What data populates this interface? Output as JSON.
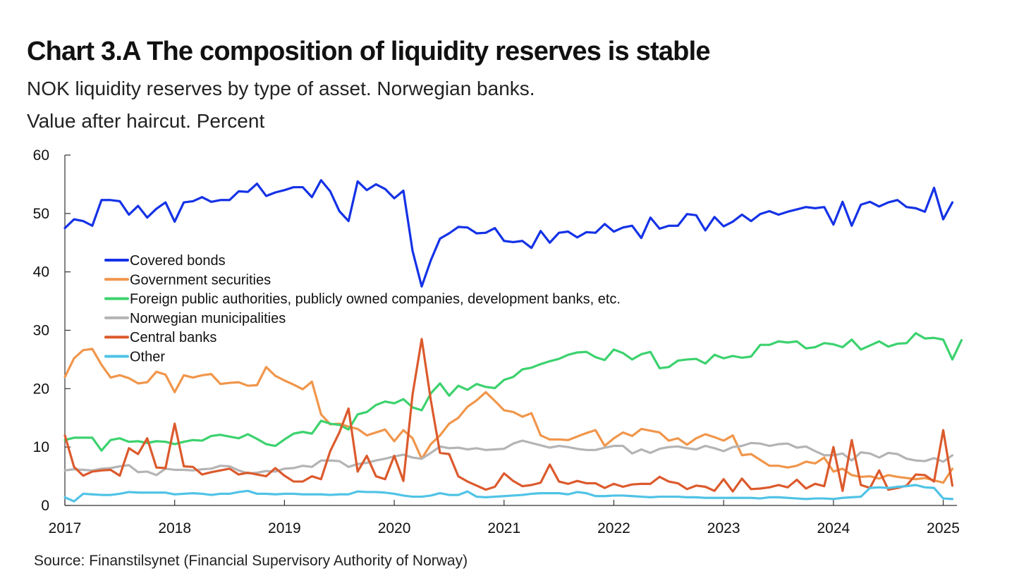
{
  "title": "Chart 3.A The composition of liquidity reserves is stable",
  "subtitle_line1": "NOK liquidity reserves by type of asset. Norwegian banks.",
  "subtitle_line2": "Value after haircut. Percent",
  "source": "Source: Finanstilsynet (Financial Supervisory Authority of Norway)",
  "chart_data": {
    "type": "line",
    "title": "Chart 3.A The composition of liquidity reserves is stable",
    "xlabel": "",
    "ylabel": "",
    "ylim": [
      0,
      60
    ],
    "xlim": [
      2017.0,
      2025.125
    ],
    "yticks": [
      0,
      10,
      20,
      30,
      40,
      50,
      60
    ],
    "xticks": [
      2017,
      2018,
      2019,
      2020,
      2021,
      2022,
      2023,
      2024,
      2025
    ],
    "frequency": "monthly",
    "x_start": "2017-01",
    "grid": false,
    "legend_position": "left, inside plot",
    "series": [
      {
        "name": "Covered bonds",
        "color": "#1432e6",
        "values": [
          47.5,
          49.0,
          48.7,
          47.9,
          52.3,
          52.3,
          52.1,
          49.8,
          51.3,
          49.3,
          50.8,
          51.9,
          48.6,
          51.9,
          52.1,
          52.8,
          52.0,
          52.3,
          52.3,
          53.8,
          53.7,
          55.1,
          53.0,
          53.6,
          54.0,
          54.5,
          54.5,
          52.8,
          55.7,
          53.8,
          50.4,
          48.7,
          55.5,
          54.0,
          55.0,
          54.2,
          52.6,
          53.9,
          43.6,
          37.5,
          42.0,
          45.7,
          46.6,
          47.7,
          47.6,
          46.6,
          46.7,
          47.5,
          45.3,
          45.1,
          45.3,
          44.1,
          47.0,
          45.0,
          46.7,
          46.9,
          45.9,
          46.8,
          46.7,
          48.2,
          46.9,
          47.6,
          47.9,
          45.8,
          49.3,
          47.4,
          47.9,
          47.9,
          49.9,
          49.7,
          47.1,
          49.4,
          47.8,
          48.6,
          49.8,
          48.7,
          49.9,
          50.4,
          49.8,
          50.3,
          50.7,
          51.1,
          50.9,
          51.1,
          48.1,
          52.0,
          47.9,
          51.5,
          52.0,
          51.2,
          51.9,
          52.3,
          51.1,
          50.9,
          50.3,
          54.4,
          49.0,
          51.9
        ]
      },
      {
        "name": "Government securities",
        "color": "#f0964b",
        "values": [
          22.0,
          25.2,
          26.6,
          26.8,
          24.1,
          21.9,
          22.3,
          21.8,
          20.9,
          21.1,
          22.9,
          22.4,
          19.4,
          22.3,
          21.9,
          22.3,
          22.5,
          20.8,
          21.0,
          21.1,
          20.5,
          20.6,
          23.7,
          22.2,
          21.4,
          20.7,
          19.9,
          21.2,
          15.6,
          13.9,
          14.0,
          13.5,
          13.1,
          12.0,
          12.5,
          13.0,
          11.0,
          12.9,
          11.5,
          8.0,
          10.5,
          12.0,
          14.0,
          15.0,
          16.9,
          18.0,
          19.4,
          17.9,
          16.3,
          16.0,
          15.2,
          15.8,
          12.0,
          11.3,
          11.3,
          11.2,
          11.8,
          12.4,
          12.9,
          10.2,
          11.5,
          12.5,
          11.9,
          13.1,
          12.8,
          12.5,
          11.1,
          11.5,
          10.4,
          11.5,
          12.2,
          11.7,
          11.1,
          12.0,
          8.6,
          8.8,
          7.8,
          6.8,
          6.8,
          6.5,
          6.8,
          7.5,
          7.2,
          8.2,
          5.8,
          6.3,
          5.2,
          4.9,
          5.0,
          4.6,
          5.2,
          4.9,
          4.7,
          4.5,
          4.7,
          4.3,
          3.9,
          6.3
        ]
      },
      {
        "name": "Foreign public authorities, publicly owned companies, development banks, etc.",
        "color": "#3cd26e",
        "values": [
          11.2,
          11.6,
          11.6,
          11.6,
          9.4,
          11.2,
          11.5,
          10.9,
          11.0,
          10.7,
          11.0,
          10.9,
          10.5,
          10.9,
          11.2,
          11.1,
          11.9,
          12.1,
          11.8,
          11.5,
          12.2,
          11.4,
          10.5,
          10.2,
          11.3,
          12.3,
          12.6,
          12.3,
          14.5,
          14.0,
          13.8,
          13.0,
          15.6,
          16.0,
          17.2,
          17.8,
          17.5,
          18.2,
          16.8,
          16.3,
          19.2,
          20.9,
          18.8,
          20.5,
          19.8,
          20.8,
          20.3,
          20.1,
          21.5,
          22.0,
          23.3,
          23.6,
          24.2,
          24.7,
          25.1,
          25.8,
          26.2,
          26.3,
          25.4,
          24.9,
          26.7,
          26.1,
          25.0,
          25.9,
          26.3,
          23.5,
          23.7,
          24.8,
          25.0,
          25.1,
          24.3,
          25.8,
          25.2,
          25.6,
          25.3,
          25.5,
          27.5,
          27.5,
          28.1,
          27.9,
          28.1,
          26.9,
          27.1,
          27.8,
          27.6,
          27.1,
          28.4,
          26.7,
          27.4,
          28.1,
          27.2,
          27.7,
          27.8,
          29.5,
          28.6,
          28.7,
          28.4,
          25.0,
          28.3
        ]
      },
      {
        "name": "Norwegian municipalities",
        "color": "#b4b4b4",
        "values": [
          6.0,
          6.2,
          6.1,
          6.0,
          6.3,
          6.4,
          6.7,
          6.9,
          5.7,
          5.8,
          5.2,
          6.3,
          6.1,
          6.1,
          6.0,
          6.2,
          6.3,
          6.8,
          6.7,
          6.0,
          5.5,
          5.6,
          5.9,
          5.8,
          6.3,
          6.4,
          6.8,
          6.6,
          7.7,
          7.7,
          7.6,
          6.6,
          7.1,
          7.3,
          7.7,
          8.0,
          8.4,
          8.7,
          8.2,
          8.0,
          9.0,
          10.1,
          9.8,
          9.9,
          9.6,
          9.8,
          9.5,
          9.6,
          9.7,
          10.6,
          11.1,
          10.7,
          10.3,
          9.9,
          10.2,
          10.0,
          9.7,
          9.5,
          9.5,
          9.9,
          10.2,
          10.2,
          8.9,
          9.6,
          9.0,
          9.7,
          10.0,
          10.1,
          9.8,
          9.6,
          10.2,
          9.8,
          9.3,
          10.0,
          10.2,
          10.7,
          10.6,
          10.2,
          10.5,
          10.6,
          9.9,
          10.1,
          9.3,
          8.6,
          8.6,
          8.9,
          7.7,
          9.1,
          8.9,
          8.2,
          9.0,
          8.8,
          8.0,
          7.7,
          7.6,
          8.1,
          7.5,
          8.6
        ]
      },
      {
        "name": "Central banks",
        "color": "#dc5a2d",
        "values": [
          12.0,
          6.6,
          5.1,
          5.8,
          6.0,
          6.1,
          5.1,
          9.8,
          8.8,
          11.5,
          6.5,
          6.4,
          14.0,
          6.7,
          6.6,
          5.3,
          5.7,
          6.0,
          6.3,
          5.3,
          5.6,
          5.3,
          5.0,
          6.4,
          5.1,
          4.1,
          4.1,
          5.0,
          4.5,
          9.3,
          12.5,
          16.6,
          5.8,
          8.5,
          5.0,
          4.5,
          8.5,
          4.2,
          19.0,
          28.5,
          18.0,
          9.0,
          8.8,
          5.0,
          4.1,
          3.4,
          2.7,
          3.2,
          5.5,
          4.2,
          3.3,
          3.5,
          3.9,
          7.0,
          4.1,
          3.7,
          4.2,
          3.8,
          3.8,
          3.0,
          3.7,
          3.2,
          3.6,
          3.7,
          3.7,
          4.9,
          4.1,
          3.8,
          2.8,
          3.4,
          3.2,
          2.5,
          4.5,
          2.4,
          4.6,
          2.8,
          2.9,
          3.1,
          3.5,
          3.1,
          4.4,
          2.9,
          3.7,
          3.3,
          10.0,
          2.5,
          11.2,
          3.5,
          3.0,
          6.0,
          2.7,
          3.0,
          3.4,
          5.3,
          5.2,
          4.1,
          12.9,
          3.4
        ]
      },
      {
        "name": "Other",
        "color": "#50c3e6",
        "values": [
          1.4,
          0.7,
          2.0,
          1.9,
          1.8,
          1.8,
          2.0,
          2.3,
          2.2,
          2.2,
          2.2,
          2.2,
          1.9,
          2.0,
          2.1,
          2.0,
          1.8,
          2.0,
          2.0,
          2.3,
          2.5,
          2.0,
          2.0,
          1.9,
          2.0,
          2.0,
          1.9,
          1.9,
          1.9,
          1.8,
          1.9,
          1.9,
          2.4,
          2.3,
          2.3,
          2.2,
          2.0,
          1.7,
          1.5,
          1.5,
          1.7,
          2.1,
          1.8,
          1.8,
          2.4,
          1.5,
          1.4,
          1.5,
          1.6,
          1.7,
          1.8,
          2.0,
          2.1,
          2.1,
          2.1,
          1.9,
          2.3,
          2.1,
          1.6,
          1.6,
          1.7,
          1.7,
          1.6,
          1.5,
          1.4,
          1.5,
          1.5,
          1.5,
          1.4,
          1.4,
          1.3,
          1.3,
          1.3,
          1.3,
          1.3,
          1.3,
          1.2,
          1.4,
          1.4,
          1.3,
          1.2,
          1.1,
          1.2,
          1.2,
          1.1,
          1.3,
          1.4,
          1.5,
          3.0,
          3.1,
          3.0,
          3.2,
          3.3,
          3.5,
          3.1,
          3.0,
          1.2,
          1.1
        ]
      }
    ]
  }
}
